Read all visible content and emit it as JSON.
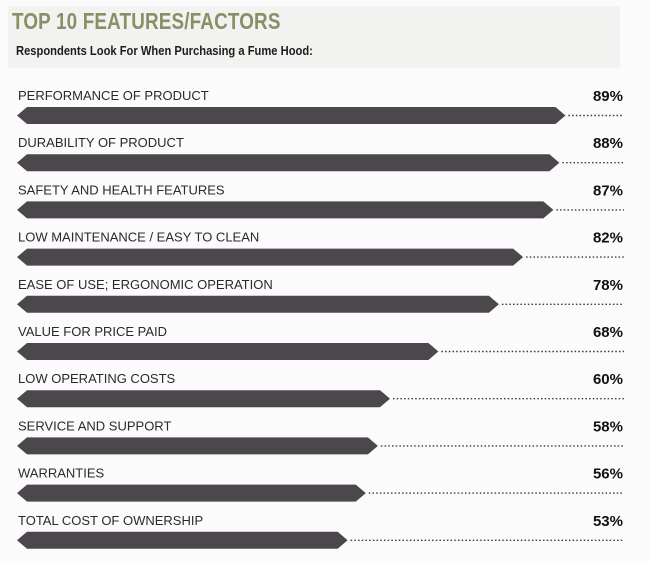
{
  "header": {
    "title": "TOP 10 FEATURES/FACTORS",
    "subtitle": "Respondents Look For When Purchasing a Fume Hood:"
  },
  "colors": {
    "title": "#8b8f66",
    "bar": "#4c474c",
    "background": "#fbfbfb"
  },
  "chart_data": {
    "type": "bar",
    "orientation": "horizontal",
    "title": "TOP 10 FEATURES/FACTORS",
    "subtitle": "Respondents Look For When Purchasing a Fume Hood:",
    "categories": [
      "PERFORMANCE OF PRODUCT",
      "DURABILITY OF PRODUCT",
      "SAFETY AND HEALTH FEATURES",
      "LOW MAINTENANCE / EASY TO CLEAN",
      "EASE OF USE; ERGONOMIC OPERATION",
      "VALUE FOR PRICE PAID",
      "LOW OPERATING COSTS",
      "SERVICE AND SUPPORT",
      "WARRANTIES",
      "TOTAL COST OF OWNERSHIP"
    ],
    "values": [
      89,
      88,
      87,
      82,
      78,
      68,
      60,
      58,
      56,
      53
    ],
    "value_labels": [
      "89%",
      "88%",
      "87%",
      "82%",
      "78%",
      "68%",
      "60%",
      "58%",
      "56%",
      "53%"
    ],
    "unit": "%",
    "xlim": [
      0,
      100
    ],
    "grid": false,
    "legend": "none"
  }
}
